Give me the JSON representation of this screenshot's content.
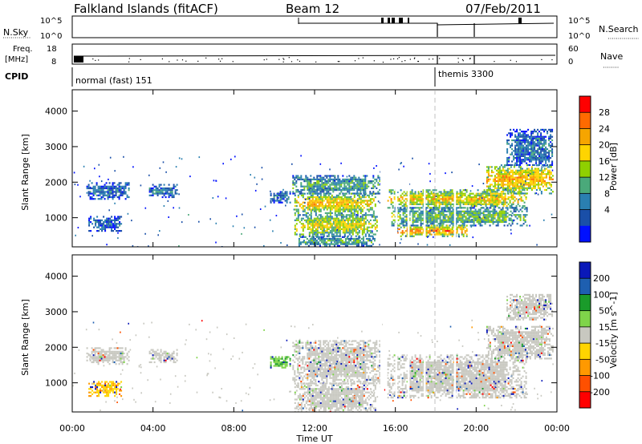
{
  "header": {
    "station": "Falkland Islands (fitACF)",
    "beam": "Beam 12",
    "date": "07/Feb/2011"
  },
  "strips": {
    "nsky_label": "N.Sky",
    "nsky_ticks": [
      "10^5",
      "10^0"
    ],
    "nsearch_label": "N.Search",
    "nsearch_ticks": [
      "10^5",
      "10^0"
    ],
    "freq_label_top": "Freq.",
    "freq_label_unit": "[MHz]",
    "freq_ticks": [
      "18",
      "8"
    ],
    "nave_label": "Nave",
    "nave_ticks": [
      "60",
      "0"
    ],
    "cpid_label": "CPID",
    "cpid_segments": [
      {
        "label": "normal (fast) 151",
        "start_hour": 0.0
      },
      {
        "label": "themis 3300",
        "start_hour": 18.0
      }
    ]
  },
  "axes": {
    "time_ticks": [
      "00:00",
      "04:00",
      "08:00",
      "12:00",
      "16:00",
      "20:00",
      "00:00"
    ],
    "time_label": "Time UT",
    "range_label": "Slant Range [km]",
    "range_ticks": [
      "1000",
      "2000",
      "3000",
      "4000"
    ]
  },
  "colorbars": {
    "power": {
      "label": "Power [dB]",
      "ticks": [
        "28",
        "24",
        "20",
        "16",
        "12",
        "8",
        "4"
      ],
      "colors": [
        "#ff0000",
        "#ff6a00",
        "#f6a500",
        "#ffd400",
        "#8fd000",
        "#4aa97a",
        "#2a7fb0",
        "#1a4fa8",
        "#0010ff"
      ]
    },
    "velocity": {
      "label": "Velocity [m s^-1]",
      "ticks": [
        "200",
        "100",
        "50",
        "15",
        "-15",
        "-50",
        "-100",
        "-200"
      ],
      "colors": [
        "#0a18b8",
        "#1e5fb0",
        "#1a9b2a",
        "#7fd44a",
        "#c8c8c0",
        "#ffd400",
        "#ff9900",
        "#ff5000",
        "#ff0000"
      ]
    }
  },
  "chart_data": [
    {
      "type": "heatmap",
      "panel": "power",
      "ylabel": "Slant Range [km]",
      "xlabel": "",
      "x_range_hours": [
        0,
        24
      ],
      "y_range_km": [
        180,
        4600
      ],
      "echo_regions": [
        {
          "x": [
            0.7,
            2.8
          ],
          "y": [
            1550,
            2000
          ],
          "value": 6
        },
        {
          "x": [
            0.8,
            2.4
          ],
          "y": [
            650,
            1050
          ],
          "value": 5
        },
        {
          "x": [
            3.8,
            5.2
          ],
          "y": [
            1600,
            1950
          ],
          "value": 6
        },
        {
          "x": [
            9.8,
            10.8
          ],
          "y": [
            1450,
            1750
          ],
          "value": 6
        },
        {
          "x": [
            10.9,
            15.2
          ],
          "y": [
            1700,
            2200
          ],
          "value": 10
        },
        {
          "x": [
            11.0,
            15.0
          ],
          "y": [
            1150,
            1700
          ],
          "value": 18
        },
        {
          "x": [
            11.0,
            15.1
          ],
          "y": [
            500,
            1100
          ],
          "value": 16
        },
        {
          "x": [
            11.2,
            15.0
          ],
          "y": [
            220,
            480
          ],
          "value": 10
        },
        {
          "x": [
            15.6,
            22.5
          ],
          "y": [
            1300,
            1800
          ],
          "value": 18
        },
        {
          "x": [
            15.8,
            22.5
          ],
          "y": [
            800,
            1300
          ],
          "value": 12
        },
        {
          "x": [
            16.0,
            19.5
          ],
          "y": [
            500,
            800
          ],
          "value": 22
        },
        {
          "x": [
            20.5,
            23.8
          ],
          "y": [
            1700,
            2500
          ],
          "value": 20
        },
        {
          "x": [
            21.5,
            23.8
          ],
          "y": [
            2500,
            3500
          ],
          "value": 6
        }
      ]
    },
    {
      "type": "heatmap",
      "panel": "velocity",
      "ylabel": "Slant Range [km]",
      "xlabel": "Time UT",
      "x_range_hours": [
        0,
        24
      ],
      "y_range_km": [
        180,
        4600
      ],
      "echo_regions": [
        {
          "x": [
            0.7,
            2.8
          ],
          "y": [
            1550,
            2000
          ],
          "value": 0
        },
        {
          "x": [
            0.8,
            2.4
          ],
          "y": [
            650,
            1050
          ],
          "value": -30
        },
        {
          "x": [
            3.8,
            5.2
          ],
          "y": [
            1600,
            1950
          ],
          "value": 0
        },
        {
          "x": [
            9.8,
            10.8
          ],
          "y": [
            1450,
            1750
          ],
          "value": 30
        },
        {
          "x": [
            10.9,
            15.2
          ],
          "y": [
            1000,
            2200
          ],
          "value": 0
        },
        {
          "x": [
            11.0,
            15.0
          ],
          "y": [
            200,
            1000
          ],
          "value": 0
        },
        {
          "x": [
            15.6,
            22.5
          ],
          "y": [
            600,
            1800
          ],
          "value": 0
        },
        {
          "x": [
            20.5,
            23.8
          ],
          "y": [
            1700,
            2600
          ],
          "value": 0
        },
        {
          "x": [
            21.5,
            23.8
          ],
          "y": [
            2800,
            3500
          ],
          "value": 0
        }
      ]
    }
  ]
}
